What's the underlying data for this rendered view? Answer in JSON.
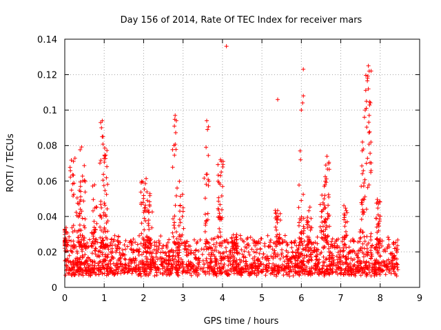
{
  "chart_data": {
    "type": "scatter",
    "title": "Day 156 of 2014, Rate Of TEC Index for receiver mars",
    "xlabel": "GPS time / hours",
    "ylabel": "ROTI / TECUs",
    "xlim": [
      0,
      9
    ],
    "ylim": [
      0,
      0.14
    ],
    "x_ticks": [
      "0",
      "1",
      "2",
      "3",
      "4",
      "5",
      "6",
      "7",
      "8",
      "9"
    ],
    "y_ticks": [
      "0",
      "0.02",
      "0.04",
      "0.06",
      "0.08",
      "0.1",
      "0.12",
      "0.14"
    ],
    "grid": true,
    "marker": "+",
    "color": "#ff0000",
    "series": [
      {
        "name": "ROTI",
        "x_range": [
          0,
          8.45
        ],
        "baseline_band": [
          0.003,
          0.03
        ],
        "peaks": [
          {
            "x": 0.0,
            "y": 0.034
          },
          {
            "x": 0.2,
            "y": 0.075
          },
          {
            "x": 0.35,
            "y": 0.06
          },
          {
            "x": 0.45,
            "y": 0.08
          },
          {
            "x": 0.75,
            "y": 0.062
          },
          {
            "x": 0.95,
            "y": 0.094
          },
          {
            "x": 1.05,
            "y": 0.082
          },
          {
            "x": 2.0,
            "y": 0.063
          },
          {
            "x": 2.15,
            "y": 0.055
          },
          {
            "x": 2.8,
            "y": 0.097
          },
          {
            "x": 2.95,
            "y": 0.06
          },
          {
            "x": 3.6,
            "y": 0.094
          },
          {
            "x": 3.95,
            "y": 0.072
          },
          {
            "x": 4.3,
            "y": 0.03
          },
          {
            "x": 5.4,
            "y": 0.044
          },
          {
            "x": 6.0,
            "y": 0.06
          },
          {
            "x": 6.2,
            "y": 0.046
          },
          {
            "x": 6.55,
            "y": 0.052
          },
          {
            "x": 6.65,
            "y": 0.072
          },
          {
            "x": 7.1,
            "y": 0.048
          },
          {
            "x": 7.55,
            "y": 0.082
          },
          {
            "x": 7.7,
            "y": 0.124
          },
          {
            "x": 7.95,
            "y": 0.05
          }
        ],
        "points": [
          {
            "x": 4.1,
            "y": 0.136
          },
          {
            "x": 6.05,
            "y": 0.123
          },
          {
            "x": 6.05,
            "y": 0.108
          },
          {
            "x": 6.03,
            "y": 0.104
          },
          {
            "x": 6.0,
            "y": 0.1
          },
          {
            "x": 5.97,
            "y": 0.077
          },
          {
            "x": 5.98,
            "y": 0.072
          },
          {
            "x": 5.4,
            "y": 0.106
          },
          {
            "x": 7.7,
            "y": 0.125
          },
          {
            "x": 7.72,
            "y": 0.122
          },
          {
            "x": 7.68,
            "y": 0.118
          },
          {
            "x": 7.7,
            "y": 0.112
          },
          {
            "x": 7.65,
            "y": 0.105
          },
          {
            "x": 7.75,
            "y": 0.104
          },
          {
            "x": 7.62,
            "y": 0.1
          },
          {
            "x": 7.6,
            "y": 0.096
          },
          {
            "x": 7.72,
            "y": 0.097
          },
          {
            "x": 7.55,
            "y": 0.082
          },
          {
            "x": 7.57,
            "y": 0.078
          },
          {
            "x": 7.65,
            "y": 0.07
          },
          {
            "x": 6.65,
            "y": 0.074
          },
          {
            "x": 6.62,
            "y": 0.069
          },
          {
            "x": 3.6,
            "y": 0.094
          },
          {
            "x": 3.62,
            "y": 0.089
          },
          {
            "x": 3.95,
            "y": 0.072
          },
          {
            "x": 3.97,
            "y": 0.071
          },
          {
            "x": 3.95,
            "y": 0.063
          },
          {
            "x": 2.8,
            "y": 0.097
          },
          {
            "x": 2.83,
            "y": 0.094
          },
          {
            "x": 2.78,
            "y": 0.091
          },
          {
            "x": 0.95,
            "y": 0.094
          },
          {
            "x": 0.93,
            "y": 0.09
          },
          {
            "x": 0.97,
            "y": 0.085
          }
        ]
      }
    ]
  }
}
